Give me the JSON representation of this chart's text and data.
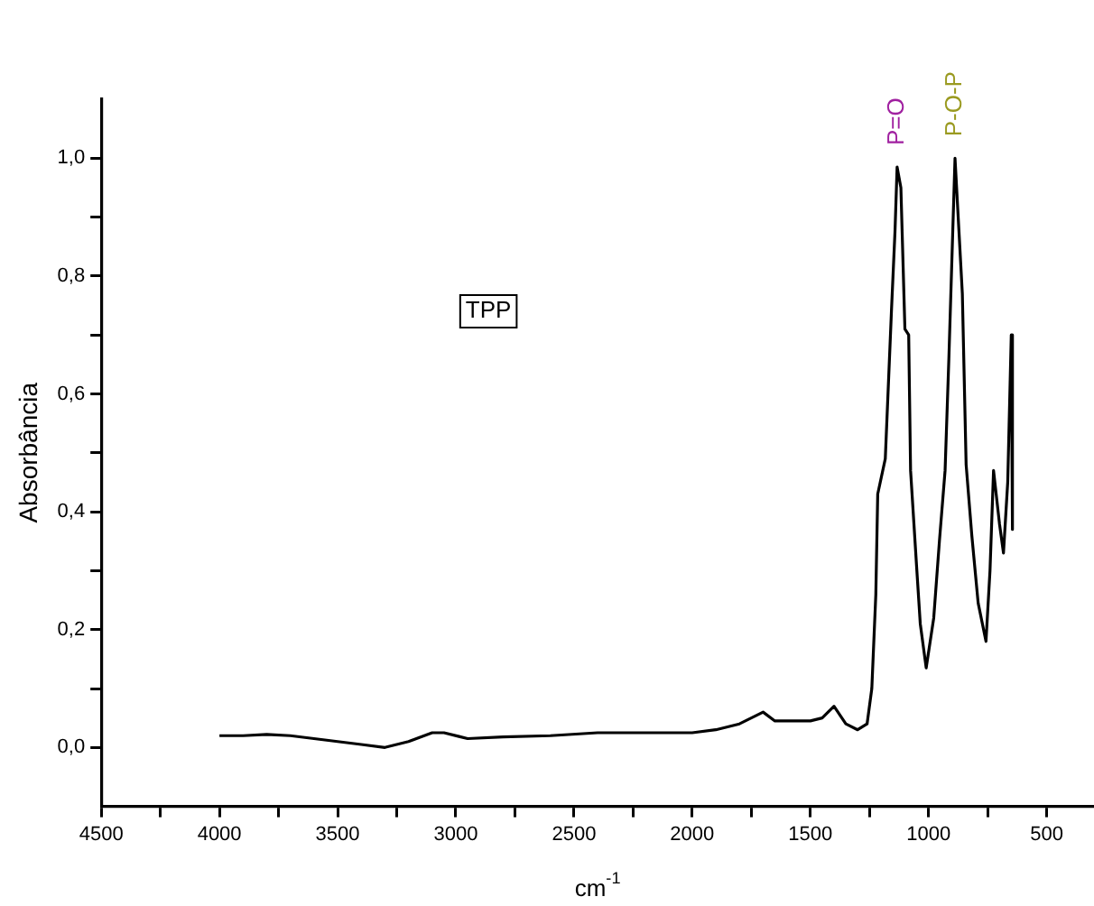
{
  "chart_data": {
    "type": "line",
    "xlabel": "cm$^{-1}$",
    "ylabel": "Absorbância",
    "x": [
      4000,
      3900,
      3800,
      3700,
      3600,
      3500,
      3400,
      3300,
      3200,
      3100,
      3050,
      2950,
      2800,
      2600,
      2400,
      2200,
      2000,
      1900,
      1800,
      1750,
      1700,
      1650,
      1550,
      1500,
      1450,
      1400,
      1350,
      1300,
      1260,
      1240,
      1223,
      1215,
      1183,
      1157,
      1142,
      1133,
      1117,
      1100,
      1084,
      1076,
      1051,
      1035,
      1010,
      978,
      954,
      930,
      914,
      898,
      888,
      857,
      841,
      817,
      790,
      757,
      740,
      725,
      700,
      683,
      665,
      650,
      645
    ],
    "series": [
      {
        "color": "#000000",
        "values": [
          0.02,
          0.02,
          0.022,
          0.02,
          0.015,
          0.01,
          0.005,
          0.0,
          0.01,
          0.025,
          0.025,
          0.015,
          0.018,
          0.02,
          0.025,
          0.025,
          0.025,
          0.03,
          0.04,
          0.05,
          0.06,
          0.045,
          0.045,
          0.045,
          0.05,
          0.07,
          0.04,
          0.03,
          0.04,
          0.1,
          0.26,
          0.43,
          0.49,
          0.74,
          0.875,
          0.985,
          0.95,
          0.71,
          0.7,
          0.47,
          0.31,
          0.21,
          0.135,
          0.22,
          0.35,
          0.47,
          0.66,
          0.87,
          1.0,
          0.77,
          0.48,
          0.36,
          0.245,
          0.18,
          0.3,
          0.47,
          0.38,
          0.33,
          0.45,
          0.7,
          0.37
        ]
      }
    ],
    "xlim": [
      4500,
      300
    ],
    "xticks": [
      4500,
      {
        "value": 4250,
        "label": null
      },
      4000,
      {
        "value": 3750,
        "label": null
      },
      3500,
      {
        "value": 3250,
        "label": null
      },
      3000,
      {
        "value": 2750,
        "label": null
      },
      2500,
      {
        "value": 2250,
        "label": null
      },
      2000,
      {
        "value": 1750,
        "label": null
      },
      1500,
      {
        "value": 1250,
        "label": null
      },
      1000,
      {
        "value": 750,
        "label": null
      },
      500
    ],
    "ylim": [
      -0.1,
      1.1
    ],
    "yticks": [
      {
        "value": 0,
        "label": "0,0"
      },
      {
        "value": 0.1,
        "label": null
      },
      {
        "value": 0.2,
        "label": "0,2"
      },
      {
        "value": 0.3,
        "label": null
      },
      {
        "value": 0.4,
        "label": "0,4"
      },
      {
        "value": 0.5,
        "label": null
      },
      {
        "value": 0.6,
        "label": "0,6"
      },
      {
        "value": 0.7,
        "label": null
      },
      {
        "value": 0.8,
        "label": "0,8"
      },
      {
        "value": 0.9,
        "label": null
      },
      {
        "value": 1,
        "label": "1,0"
      }
    ],
    "grid": false,
    "legend": false,
    "marker": "none",
    "line_style": "solid",
    "annotations": [
      "TPP",
      {
        "text": "P=O",
        "x": 1133,
        "y": 0.985
      },
      {
        "text": "P-O-P",
        "x": 888,
        "y": 1.0
      }
    ]
  }
}
